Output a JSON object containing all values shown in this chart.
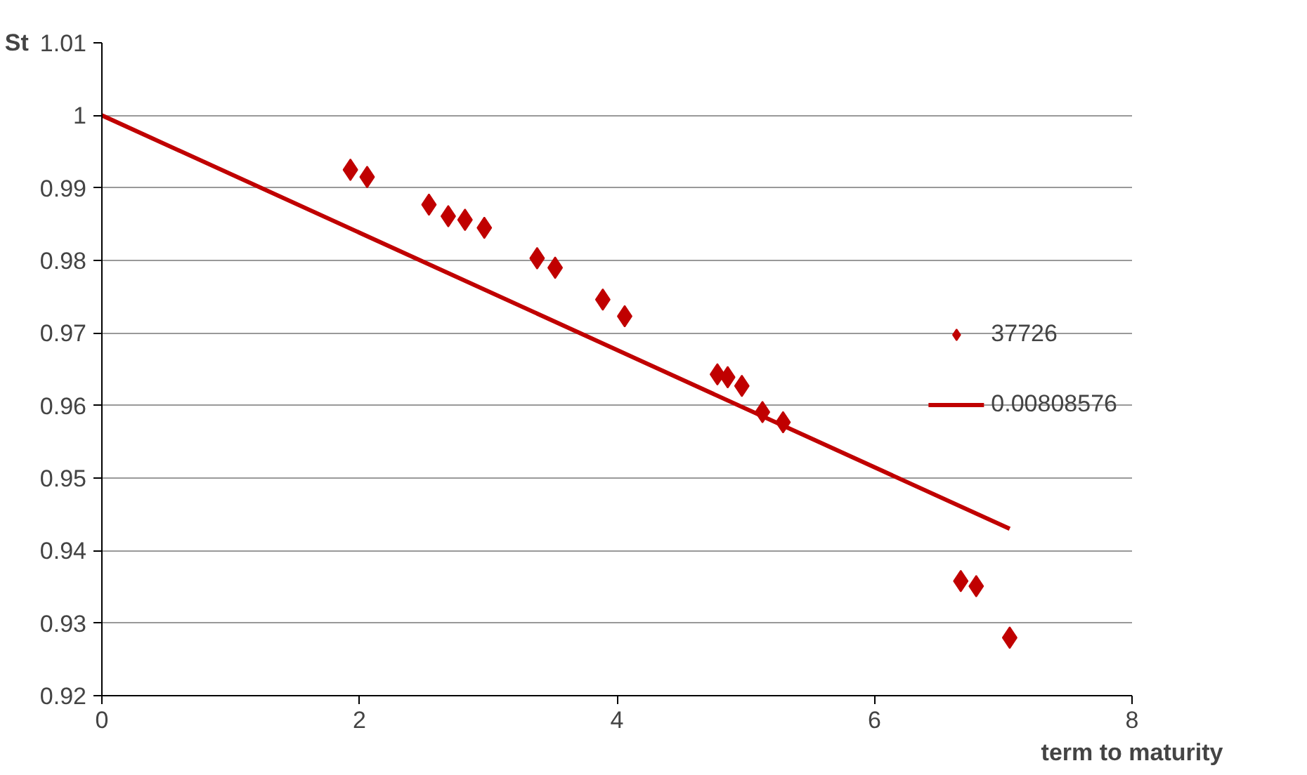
{
  "chart_data": {
    "type": "scatter",
    "xlabel": "term to maturity",
    "ylabel": "St",
    "xlim": [
      0,
      8
    ],
    "xticks": [
      0,
      2,
      4,
      6,
      8
    ],
    "ylim": [
      0.92,
      1.01
    ],
    "yticks": [
      0.92,
      0.93,
      0.94,
      0.95,
      0.96,
      0.97,
      0.98,
      0.99,
      1,
      1.01
    ],
    "grid": "y",
    "legend": "right",
    "series": [
      {
        "name": "37726",
        "color": "#c00000",
        "marker": "diamond",
        "x": [
          1.93,
          2.06,
          2.54,
          2.69,
          2.82,
          2.97,
          3.38,
          3.52,
          3.89,
          4.06,
          4.78,
          4.86,
          4.97,
          5.13,
          5.29,
          6.67,
          6.79,
          7.05
        ],
        "values": [
          0.9925,
          0.9915,
          0.9877,
          0.9861,
          0.9856,
          0.9845,
          0.9803,
          0.979,
          0.9746,
          0.9723,
          0.9643,
          0.9639,
          0.9627,
          0.9591,
          0.9577,
          0.9358,
          0.9351,
          0.928
        ]
      },
      {
        "name": "0.00808576",
        "color": "#c00000",
        "type": "line",
        "x": [
          0,
          7.05
        ],
        "values": [
          1,
          0.943
        ]
      }
    ]
  }
}
